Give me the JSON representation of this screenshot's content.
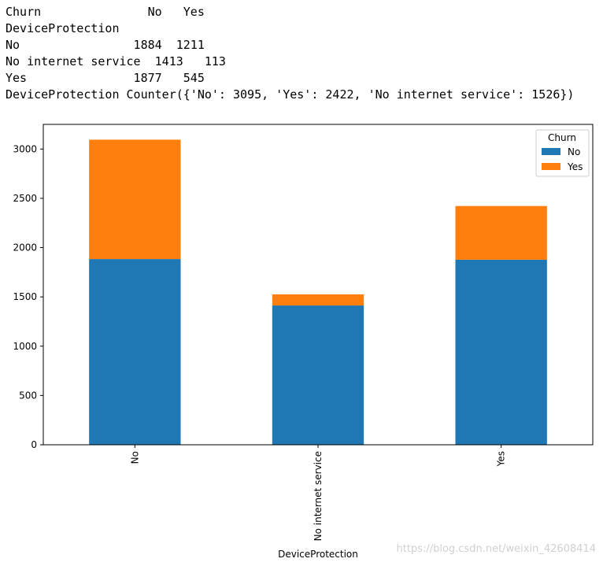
{
  "output": {
    "lines": [
      "Churn               No   Yes",
      "DeviceProtection",
      "No                1884  1211",
      "No internet service  1413   113",
      "Yes               1877   545",
      "DeviceProtection Counter({'No': 3095, 'Yes': 2422, 'No internet service': 1526})"
    ]
  },
  "chart_data": {
    "type": "bar",
    "stacked": true,
    "categories": [
      "No",
      "No internet service",
      "Yes"
    ],
    "series": [
      {
        "name": "No",
        "values": [
          1884,
          1413,
          1877
        ],
        "color": "#1f77b4"
      },
      {
        "name": "Yes",
        "values": [
          1211,
          113,
          545
        ],
        "color": "#ff7f0e"
      }
    ],
    "xlabel": "DeviceProtection",
    "ylabel": "",
    "ylim": [
      0,
      3250
    ],
    "yticks": [
      0,
      500,
      1000,
      1500,
      2000,
      2500,
      3000
    ],
    "xtick_rotation": 90,
    "legend": {
      "title": "Churn",
      "placement": "top-right"
    },
    "grid": false
  },
  "watermark": "https://blog.csdn.net/weixin_42608414"
}
